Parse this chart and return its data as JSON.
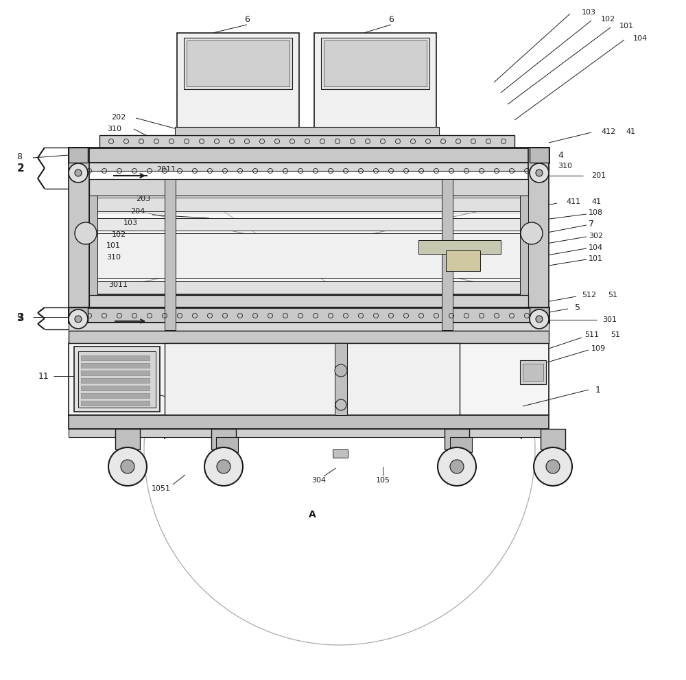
{
  "fig_width": 10.0,
  "fig_height": 9.91,
  "bg_color": "#ffffff",
  "line_color": "#1a1a1a",
  "label_color": "#1a1a1a",
  "fill_light": "#f0f0f0",
  "fill_mid": "#d8d8d8",
  "fill_dark": "#b8b8b8",
  "fill_frame": "#c8c8c8",
  "fill_panel": "#e8e8e8"
}
